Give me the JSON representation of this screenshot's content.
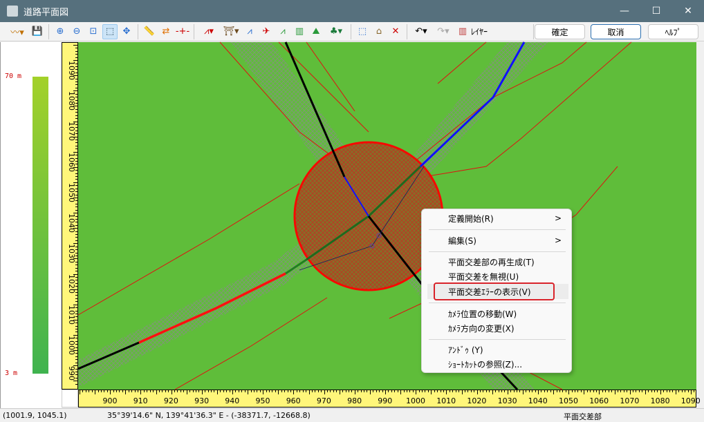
{
  "window": {
    "title": "道路平面図",
    "minimize": "—",
    "maximize": "☐",
    "close": "✕"
  },
  "toolbar": {
    "icons": [
      "terrain-profile",
      "save",
      "zoom-in",
      "zoom-out",
      "zoom-fit",
      "zoom-window",
      "pan",
      "measure",
      "swap",
      "split-line",
      "polyline",
      "railway",
      "line-a",
      "line-b",
      "line-c",
      "building",
      "terrain",
      "trees",
      "select-rect",
      "add-building",
      "edit-point",
      "undo",
      "redo",
      "layers"
    ],
    "layer_label": "ﾚｲﾔｰ",
    "confirm": "確定",
    "cancel": "取消",
    "help": "ﾍﾙﾌﾟ"
  },
  "legend": {
    "top": "70 m",
    "bottom": "3 m",
    "colors": [
      "#a3d12a",
      "#3fb34f"
    ]
  },
  "vruler": {
    "ticks": [
      "1090",
      "1080",
      "1070",
      "1060",
      "1050",
      "1040",
      "1030",
      "1020",
      "1010",
      "1000",
      "990"
    ]
  },
  "hruler": {
    "ticks": [
      "900",
      "910",
      "920",
      "930",
      "940",
      "950",
      "960",
      "970",
      "980",
      "990",
      "1000",
      "1010",
      "1020",
      "1030",
      "1040",
      "1050",
      "1060",
      "1070",
      "1080",
      "1090"
    ]
  },
  "context_menu": {
    "items": [
      {
        "label": "定義開始(R)",
        "submenu": true
      },
      {
        "label": "編集(S)",
        "submenu": true
      },
      {
        "label": "平面交差部の再生成(T)"
      },
      {
        "label": "平面交差を無視(U)"
      },
      {
        "label": "平面交差ｴﾗｰの表示(V)",
        "highlighted": true
      },
      {
        "label": "ｶﾒﾗ位置の移動(W)"
      },
      {
        "label": "ｶﾒﾗ方向の変更(X)"
      },
      {
        "label": "ｱﾝﾄﾞｩ (Y)"
      },
      {
        "label": "ｼｮｰﾄｶｯﾄの参照(Z)..."
      }
    ],
    "submenu_arrow": ">"
  },
  "status": {
    "local": "(1001.9, 1045.1)",
    "geo": "35°39'14.6\" N, 139°41'36.3\" E  -  (-38371.7, -12668.8)",
    "mode": "平面交差部"
  },
  "colors": {
    "map_bg": "#5fbd3a",
    "ruler": "#fff67a",
    "highlight": "#d9232a"
  }
}
